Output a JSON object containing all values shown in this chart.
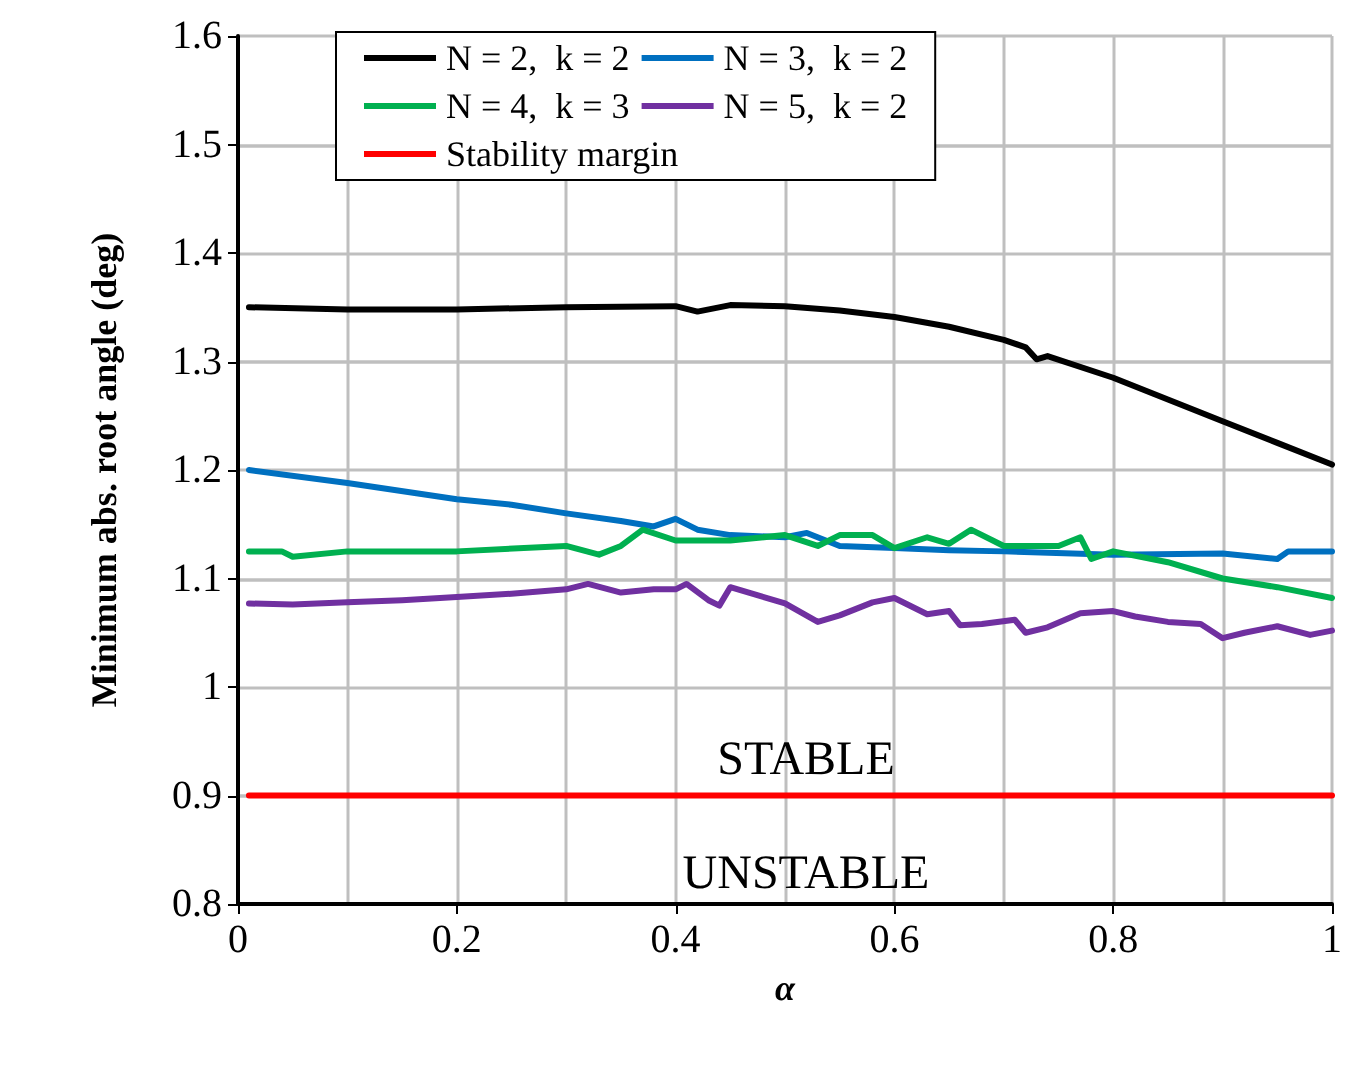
{
  "chart_data": {
    "type": "line",
    "xlabel": "α",
    "ylabel": "Minimum abs. root angle (deg)",
    "xlim": [
      0,
      1
    ],
    "xticks": [
      0,
      0.2,
      0.4,
      0.6,
      0.8,
      1
    ],
    "ylim": [
      0.8,
      1.6
    ],
    "yticks": [
      0.8,
      0.9,
      1,
      1.1,
      1.2,
      1.3,
      1.4,
      1.5,
      1.6
    ],
    "grid": true,
    "legend": "top",
    "line_style": "solid",
    "marker": "none",
    "annotations": [
      "STABLE",
      "UNSTABLE"
    ],
    "series": [
      {
        "name": "N = 2,  k = 2",
        "color": "#000000",
        "x": [
          0.01,
          0.1,
          0.2,
          0.3,
          0.4,
          0.42,
          0.45,
          0.5,
          0.55,
          0.6,
          0.65,
          0.7,
          0.72,
          0.73,
          0.74,
          0.8,
          0.85,
          0.9,
          0.95,
          1.0
        ],
        "values": [
          1.35,
          1.348,
          1.348,
          1.35,
          1.351,
          1.346,
          1.352,
          1.351,
          1.347,
          1.341,
          1.332,
          1.32,
          1.313,
          1.302,
          1.305,
          1.285,
          1.265,
          1.245,
          1.225,
          1.205
        ]
      },
      {
        "name": "N = 3,  k = 2",
        "color": "#0070c0",
        "x": [
          0.01,
          0.1,
          0.2,
          0.25,
          0.3,
          0.35,
          0.38,
          0.4,
          0.42,
          0.45,
          0.5,
          0.52,
          0.55,
          0.6,
          0.65,
          0.7,
          0.8,
          0.9,
          0.95,
          0.96,
          1.0
        ],
        "values": [
          1.2,
          1.188,
          1.173,
          1.168,
          1.16,
          1.153,
          1.148,
          1.155,
          1.145,
          1.14,
          1.138,
          1.142,
          1.13,
          1.128,
          1.126,
          1.125,
          1.122,
          1.123,
          1.118,
          1.125,
          1.125
        ]
      },
      {
        "name": "N = 4,  k = 3",
        "color": "#00b050",
        "x": [
          0.01,
          0.04,
          0.05,
          0.1,
          0.2,
          0.3,
          0.33,
          0.35,
          0.37,
          0.4,
          0.45,
          0.5,
          0.53,
          0.55,
          0.58,
          0.6,
          0.63,
          0.65,
          0.67,
          0.7,
          0.75,
          0.77,
          0.78,
          0.8,
          0.85,
          0.9,
          0.95,
          1.0
        ],
        "values": [
          1.125,
          1.125,
          1.12,
          1.125,
          1.125,
          1.13,
          1.122,
          1.13,
          1.145,
          1.135,
          1.135,
          1.14,
          1.13,
          1.14,
          1.14,
          1.128,
          1.138,
          1.132,
          1.145,
          1.13,
          1.13,
          1.138,
          1.118,
          1.125,
          1.115,
          1.1,
          1.092,
          1.082
        ]
      },
      {
        "name": "N = 5,  k = 2",
        "color": "#7030a0",
        "x": [
          0.01,
          0.05,
          0.1,
          0.15,
          0.2,
          0.25,
          0.3,
          0.32,
          0.35,
          0.38,
          0.4,
          0.41,
          0.43,
          0.44,
          0.45,
          0.5,
          0.53,
          0.55,
          0.58,
          0.6,
          0.63,
          0.65,
          0.66,
          0.68,
          0.71,
          0.72,
          0.74,
          0.77,
          0.8,
          0.82,
          0.85,
          0.88,
          0.9,
          0.92,
          0.95,
          0.98,
          1.0
        ],
        "values": [
          1.077,
          1.076,
          1.078,
          1.08,
          1.083,
          1.086,
          1.09,
          1.095,
          1.087,
          1.09,
          1.09,
          1.095,
          1.08,
          1.075,
          1.092,
          1.077,
          1.06,
          1.066,
          1.078,
          1.082,
          1.067,
          1.07,
          1.057,
          1.058,
          1.062,
          1.05,
          1.055,
          1.068,
          1.07,
          1.065,
          1.06,
          1.058,
          1.045,
          1.05,
          1.056,
          1.048,
          1.052
        ]
      },
      {
        "name": "Stability margin",
        "color": "#ff0000",
        "x": [
          0.01,
          1.0
        ],
        "values": [
          0.9,
          0.9
        ]
      }
    ]
  }
}
